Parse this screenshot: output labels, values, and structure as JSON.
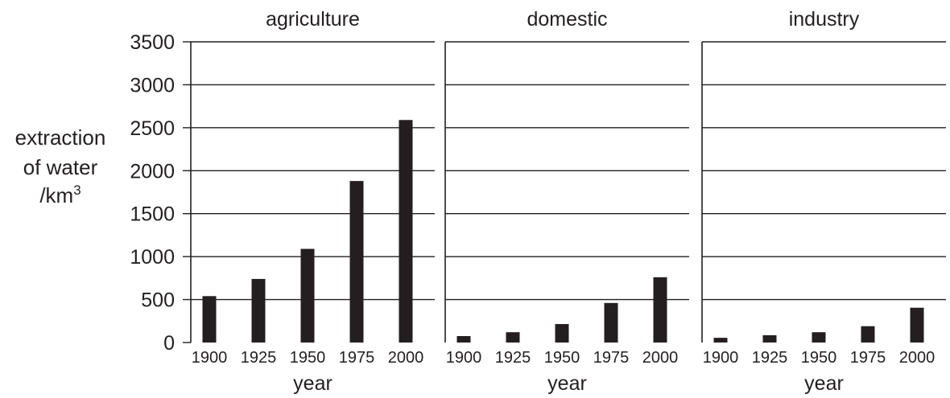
{
  "chart_data": {
    "type": "bar",
    "layout": "small-multiples",
    "ylabel_lines": [
      "extraction",
      "of water",
      "/km"
    ],
    "ylabel_superscript": "3",
    "xlabel": "year",
    "ylim": [
      0,
      3500
    ],
    "yticks": [
      0,
      500,
      1000,
      1500,
      2000,
      2500,
      3000,
      3500
    ],
    "grid": true,
    "bar_color": "#231f20",
    "categories": [
      "1900",
      "1925",
      "1950",
      "1975",
      "2000"
    ],
    "panels": [
      {
        "title": "agriculture",
        "values": [
          540,
          740,
          1090,
          1880,
          2590
        ]
      },
      {
        "title": "domestic",
        "values": [
          75,
          120,
          215,
          460,
          760
        ]
      },
      {
        "title": "industry",
        "values": [
          55,
          85,
          120,
          190,
          405
        ]
      }
    ]
  }
}
